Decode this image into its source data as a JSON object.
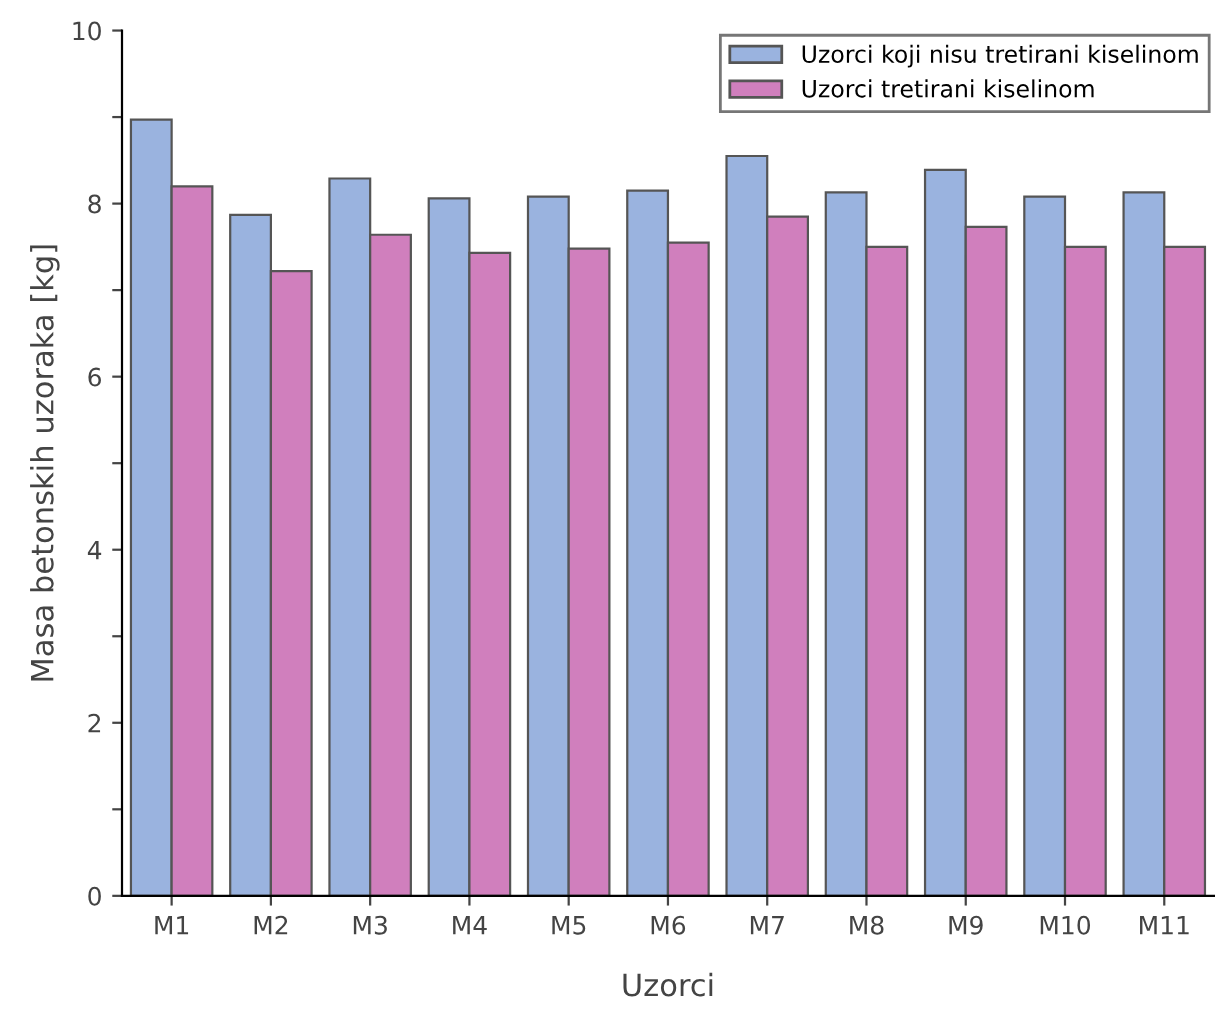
{
  "chart_data": {
    "type": "bar",
    "xlabel": "Uzorci",
    "ylabel": "Masa betonskih uzoraka [kg]",
    "categories": [
      "M1",
      "M2",
      "M3",
      "M4",
      "M5",
      "M6",
      "M7",
      "M8",
      "M9",
      "M10",
      "M11"
    ],
    "series": [
      {
        "name": "Uzorci koji nisu tretirani kiselinom",
        "color": "#9ab3df",
        "values": [
          8.97,
          7.87,
          8.29,
          8.06,
          8.08,
          8.15,
          8.55,
          8.13,
          8.39,
          8.08,
          8.13
        ]
      },
      {
        "name": "Uzorci tretirani kiselinom",
        "color": "#d07fbd",
        "values": [
          8.2,
          7.22,
          7.64,
          7.43,
          7.48,
          7.55,
          7.85,
          7.5,
          7.73,
          7.5,
          7.5
        ]
      }
    ],
    "ylim": [
      0,
      10
    ],
    "yticks": [
      0,
      {
        "value": 1,
        "label": null
      },
      2,
      {
        "value": 3,
        "label": null
      },
      4,
      {
        "value": 5,
        "label": null
      },
      6,
      {
        "value": 7,
        "label": null
      },
      8,
      {
        "value": 9,
        "label": null
      },
      10
    ],
    "legend": "top right",
    "grid": false
  }
}
